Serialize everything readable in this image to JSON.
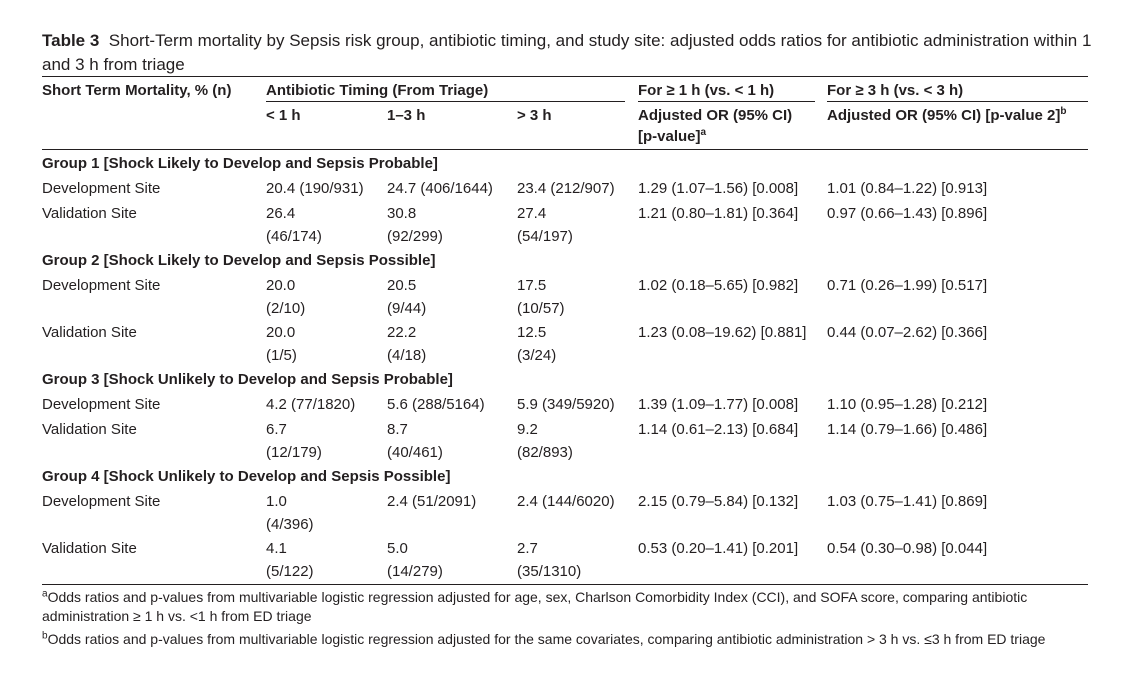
{
  "caption": {
    "label": "Table 3",
    "text": "Short-Term mortality by Sepsis risk group, antibiotic timing, and study site: adjusted odds ratios for antibiotic administration within 1 and 3 h from triage"
  },
  "header": {
    "top": [
      "Short Term Mortality, % (n)",
      "Antibiotic Timing (From Triage)",
      "For ≥ 1 h (vs. < 1 h)",
      "For ≥ 3 h (vs. < 3 h)"
    ],
    "sub": [
      {
        "lines": [
          "< 1 h"
        ]
      },
      {
        "lines": [
          "1–3 h"
        ]
      },
      {
        "lines": [
          "> 3 h"
        ]
      },
      {
        "lines": [
          "Adjusted OR (95% CI)",
          "[p-value]"
        ],
        "note": "a"
      },
      {
        "lines": [
          "Adjusted OR (95% CI) [p-value 2]"
        ],
        "note": "b"
      }
    ]
  },
  "groups": [
    {
      "title": "Group 1 [Shock Likely to Develop and Sepsis Probable]",
      "rows": [
        {
          "cells": [
            [
              "Development Site"
            ],
            [
              "20.4 (190/931)"
            ],
            [
              "24.7 (406/1644)"
            ],
            [
              "23.4 (212/907)"
            ],
            [
              "1.29 (1.07–1.56) [0.008]"
            ],
            [
              "1.01 (0.84–1.22) [0.913]"
            ]
          ]
        },
        {
          "cells": [
            [
              "Validation Site"
            ],
            [
              "26.4",
              "(46/174)"
            ],
            [
              "30.8",
              "(92/299)"
            ],
            [
              "27.4",
              "(54/197)"
            ],
            [
              "1.21 (0.80–1.81) [0.364]"
            ],
            [
              "0.97 (0.66–1.43) [0.896]"
            ]
          ]
        }
      ]
    },
    {
      "title": "Group 2 [Shock Likely to Develop and Sepsis Possible]",
      "rows": [
        {
          "cells": [
            [
              "Development Site"
            ],
            [
              "20.0",
              "(2/10)"
            ],
            [
              "20.5",
              "(9/44)"
            ],
            [
              "17.5",
              "(10/57)"
            ],
            [
              "1.02 (0.18–5.65) [0.982]"
            ],
            [
              "0.71 (0.26–1.99) [0.517]"
            ]
          ]
        },
        {
          "cells": [
            [
              "Validation Site"
            ],
            [
              "20.0",
              "(1/5)"
            ],
            [
              "22.2",
              "(4/18)"
            ],
            [
              "12.5",
              "(3/24)"
            ],
            [
              "1.23 (0.08–19.62) [0.881]"
            ],
            [
              "0.44 (0.07–2.62) [0.366]"
            ]
          ]
        }
      ]
    },
    {
      "title": "Group 3 [Shock Unlikely to Develop and Sepsis Probable]",
      "rows": [
        {
          "cells": [
            [
              "Development Site"
            ],
            [
              "4.2 (77/1820)"
            ],
            [
              "5.6 (288/5164)"
            ],
            [
              "5.9 (349/5920)"
            ],
            [
              "1.39 (1.09–1.77) [0.008]"
            ],
            [
              "1.10 (0.95–1.28) [0.212]"
            ]
          ]
        },
        {
          "cells": [
            [
              "Validation Site"
            ],
            [
              "6.7",
              "(12/179)"
            ],
            [
              "8.7",
              "(40/461)"
            ],
            [
              "9.2",
              "(82/893)"
            ],
            [
              "1.14 (0.61–2.13) [0.684]"
            ],
            [
              "1.14 (0.79–1.66) [0.486]"
            ]
          ]
        }
      ]
    },
    {
      "title": "Group 4 [Shock Unlikely to Develop and Sepsis Possible]",
      "rows": [
        {
          "cells": [
            [
              "Development Site"
            ],
            [
              "1.0",
              "(4/396)"
            ],
            [
              "2.4 (51/2091)"
            ],
            [
              "2.4 (144/6020)"
            ],
            [
              "2.15 (0.79–5.84) [0.132]"
            ],
            [
              "1.03 (0.75–1.41) [0.869]"
            ]
          ]
        },
        {
          "cells": [
            [
              "Validation Site"
            ],
            [
              "4.1",
              "(5/122)"
            ],
            [
              "5.0",
              "(14/279)"
            ],
            [
              "2.7",
              "(35/1310)"
            ],
            [
              "0.53 (0.20–1.41) [0.201]"
            ],
            [
              "0.54 (0.30–0.98) [0.044]"
            ]
          ]
        }
      ]
    }
  ],
  "footnotes": [
    {
      "mark": "a",
      "text": "Odds ratios and p-values from multivariable logistic regression adjusted for age, sex, Charlson Comorbidity Index (CCI), and SOFA score, comparing antibiotic administration ≥ 1 h vs. <1 h from ED triage"
    },
    {
      "mark": "b",
      "text": "Odds ratios and p-values from multivariable logistic regression adjusted for the same covariates, comparing antibiotic administration > 3 h vs. ≤3 h from ED triage"
    }
  ]
}
